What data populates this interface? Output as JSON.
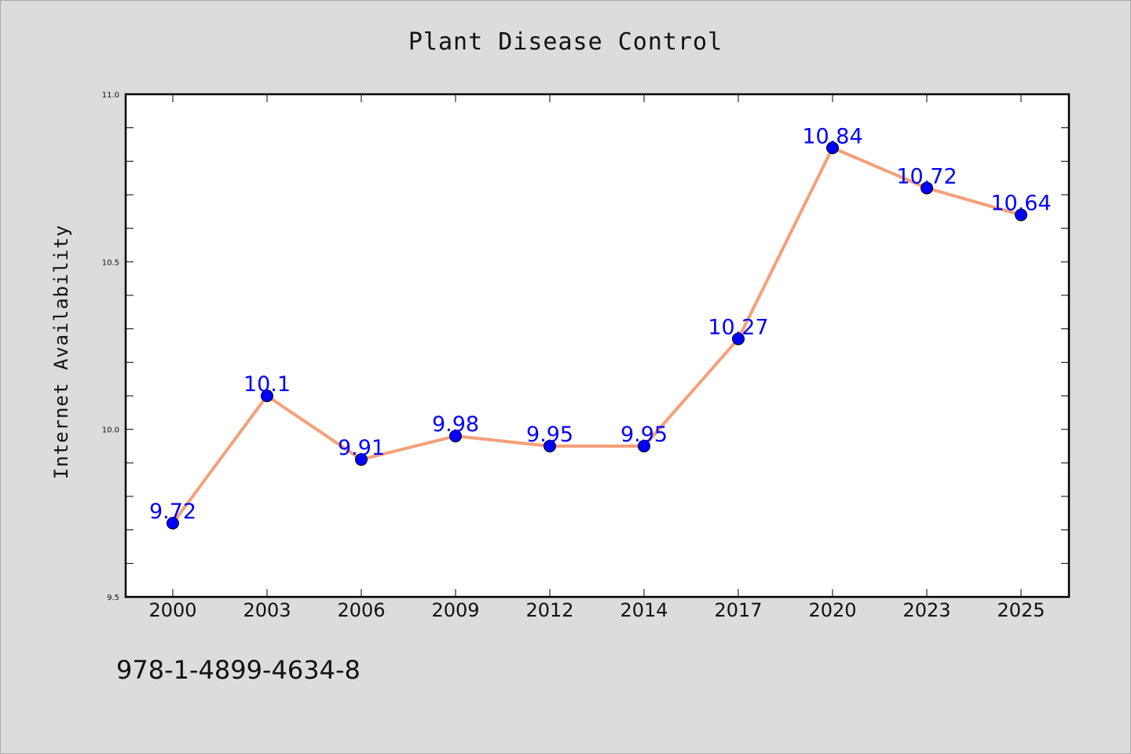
{
  "chart_data": {
    "type": "line",
    "title": "Plant Disease Control",
    "xlabel": "",
    "ylabel": "Internet Availability",
    "categories": [
      "2000",
      "2003",
      "2006",
      "2009",
      "2012",
      "2014",
      "2017",
      "2020",
      "2023",
      "2025"
    ],
    "series": [
      {
        "values": [
          9.72,
          10.1,
          9.91,
          9.98,
          9.95,
          9.95,
          10.27,
          10.84,
          10.72,
          10.64
        ],
        "labels": [
          "9.72",
          "10.1",
          "9.91",
          "9.98",
          "9.95",
          "9.95",
          "10.27",
          "10.84",
          "10.72",
          "10.64"
        ],
        "line_color": "#f4a07a",
        "marker_color": "#0000ff"
      }
    ],
    "ylim": [
      9.5,
      11.0
    ],
    "yticks": [
      "9.5",
      "10.0",
      "10.5",
      "11.0"
    ],
    "grid": false,
    "legend": "none"
  },
  "footer_text": "978-1-4899-4634-8",
  "colors": {
    "background": "#dcdcdc",
    "plot_background": "#ffffff",
    "data_label": "#0000ff"
  }
}
